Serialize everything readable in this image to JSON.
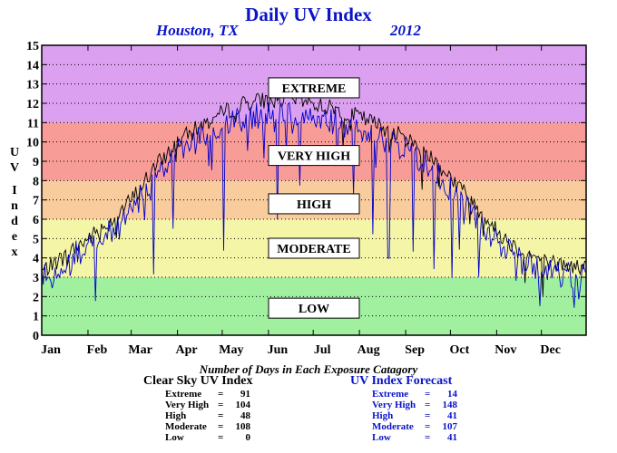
{
  "title": "Daily UV Index",
  "city": "Houston, TX",
  "year": "2012",
  "ylabel_chars": [
    "U",
    "V",
    "I",
    "n",
    "d",
    "e",
    "x"
  ],
  "chart_data": {
    "type": "line",
    "ylim": [
      0,
      15
    ],
    "yticks": [
      0,
      1,
      2,
      3,
      4,
      5,
      6,
      7,
      8,
      9,
      10,
      11,
      12,
      13,
      14,
      15
    ],
    "xlim": [
      1,
      366
    ],
    "month_labels": [
      "Jan",
      "Feb",
      "Mar",
      "Apr",
      "May",
      "Jun",
      "Jul",
      "Aug",
      "Sep",
      "Oct",
      "Nov",
      "Dec"
    ],
    "month_label_days": [
      1,
      32,
      61,
      92,
      122,
      153,
      183,
      214,
      245,
      275,
      306,
      336
    ],
    "bands": [
      {
        "label": "LOW",
        "from": 0,
        "to": 3,
        "color": "#a0f0a0",
        "label_center": 1.4
      },
      {
        "label": "MODERATE",
        "from": 3,
        "to": 6,
        "color": "#f5f5a8",
        "label_center": 4.5
      },
      {
        "label": "HIGH",
        "from": 6,
        "to": 8,
        "color": "#f8cc9c",
        "label_center": 6.8
      },
      {
        "label": "VERY HIGH",
        "from": 8,
        "to": 11,
        "color": "#f89c98",
        "label_center": 9.3
      },
      {
        "label": "EXTREME",
        "from": 11,
        "to": 15,
        "color": "#dca0f0",
        "label_center": 12.8
      }
    ],
    "series": [
      {
        "key": "clear",
        "color": "#000000",
        "knots": [
          [
            1,
            3.3
          ],
          [
            15,
            4.0
          ],
          [
            32,
            5.0
          ],
          [
            46,
            5.8
          ],
          [
            61,
            7.0
          ],
          [
            76,
            8.6
          ],
          [
            92,
            10.0
          ],
          [
            107,
            10.8
          ],
          [
            122,
            11.5
          ],
          [
            137,
            12.0
          ],
          [
            153,
            12.2
          ],
          [
            168,
            12.2
          ],
          [
            183,
            12.0
          ],
          [
            198,
            11.7
          ],
          [
            214,
            11.3
          ],
          [
            229,
            10.8
          ],
          [
            245,
            10.2
          ],
          [
            260,
            9.4
          ],
          [
            275,
            8.2
          ],
          [
            290,
            6.9
          ],
          [
            306,
            5.4
          ],
          [
            321,
            4.4
          ],
          [
            336,
            3.9
          ],
          [
            351,
            3.6
          ],
          [
            366,
            3.5
          ]
        ]
      },
      {
        "key": "forecast",
        "color": "#0000cc",
        "knots": [
          [
            1,
            3.0
          ],
          [
            15,
            3.8
          ],
          [
            32,
            4.6
          ],
          [
            46,
            5.3
          ],
          [
            61,
            6.5
          ],
          [
            76,
            8.0
          ],
          [
            92,
            9.5
          ],
          [
            107,
            10.2
          ],
          [
            122,
            10.8
          ],
          [
            137,
            11.2
          ],
          [
            153,
            11.4
          ],
          [
            168,
            11.4
          ],
          [
            183,
            11.2
          ],
          [
            198,
            11.0
          ],
          [
            214,
            10.6
          ],
          [
            229,
            10.2
          ],
          [
            245,
            9.6
          ],
          [
            260,
            8.8
          ],
          [
            275,
            7.6
          ],
          [
            290,
            6.2
          ],
          [
            306,
            4.8
          ],
          [
            321,
            3.9
          ],
          [
            336,
            3.4
          ],
          [
            351,
            3.1
          ],
          [
            366,
            3.0
          ]
        ]
      }
    ]
  },
  "stats": {
    "title": "Number of Days in Each Exposure Catagory",
    "clear": {
      "heading": "Clear Sky UV Index",
      "rows": [
        {
          "label": "Extreme",
          "value": "91"
        },
        {
          "label": "Very High",
          "value": "104"
        },
        {
          "label": "High",
          "value": "48"
        },
        {
          "label": "Moderate",
          "value": "108"
        },
        {
          "label": "Low",
          "value": "0"
        }
      ]
    },
    "forecast": {
      "heading": "UV Index Forecast",
      "rows": [
        {
          "label": "Extreme",
          "value": "14"
        },
        {
          "label": "Very High",
          "value": "148"
        },
        {
          "label": "High",
          "value": "41"
        },
        {
          "label": "Moderate",
          "value": "107"
        },
        {
          "label": "Low",
          "value": "41"
        }
      ]
    }
  }
}
